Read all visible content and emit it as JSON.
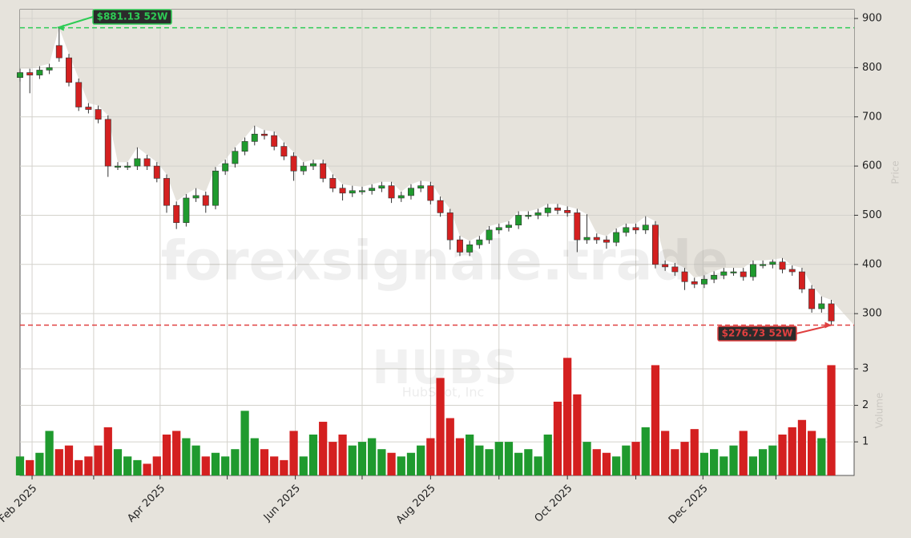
{
  "chart_data": {
    "type": "candlestick",
    "watermark": "forexsignale.trade",
    "ticker": "HUBS",
    "company": "HubSpot, Inc",
    "y_label": "Price",
    "y2_label": "Volume",
    "x": [
      0,
      3,
      6,
      9,
      12,
      15,
      18,
      21,
      24,
      27,
      30,
      33,
      36,
      39,
      42,
      45,
      48,
      51,
      54,
      57,
      60,
      63,
      66,
      69,
      72,
      75,
      78,
      81,
      84,
      87,
      90,
      93,
      96,
      99,
      102,
      105,
      108,
      111,
      114,
      117,
      120,
      123,
      126,
      129,
      132,
      135,
      138,
      141,
      144,
      147,
      150,
      153,
      156,
      159,
      162,
      165,
      168,
      171,
      174,
      177,
      180,
      183,
      186,
      189,
      192,
      195,
      198,
      201,
      204,
      207,
      210,
      213,
      216,
      219,
      222,
      225,
      228,
      231,
      234,
      237,
      240,
      243,
      246,
      249
    ],
    "open": [
      780,
      790,
      785,
      795,
      845,
      820,
      770,
      720,
      715,
      695,
      600,
      600,
      600,
      615,
      600,
      575,
      520,
      485,
      535,
      540,
      520,
      590,
      605,
      630,
      650,
      665,
      662,
      640,
      620,
      590,
      600,
      605,
      575,
      555,
      545,
      550,
      550,
      555,
      560,
      535,
      540,
      555,
      560,
      530,
      505,
      450,
      425,
      440,
      450,
      470,
      475,
      480,
      500,
      500,
      505,
      515,
      510,
      505,
      450,
      455,
      450,
      445,
      465,
      475,
      470,
      480,
      400,
      395,
      385,
      365,
      360,
      370,
      378,
      385,
      385,
      375,
      400,
      400,
      405,
      390,
      385,
      350,
      310,
      320
    ],
    "high": [
      798,
      798,
      803,
      808,
      881.13,
      828,
      778,
      728,
      723,
      703,
      608,
      608,
      638,
      623,
      608,
      583,
      528,
      543,
      555,
      548,
      598,
      613,
      638,
      658,
      682,
      673,
      670,
      648,
      628,
      608,
      613,
      613,
      583,
      563,
      560,
      558,
      563,
      568,
      568,
      548,
      563,
      570,
      568,
      538,
      513,
      458,
      448,
      458,
      478,
      483,
      488,
      508,
      508,
      513,
      523,
      523,
      518,
      513,
      502,
      463,
      458,
      473,
      483,
      483,
      498,
      488,
      408,
      403,
      393,
      373,
      378,
      386,
      393,
      393,
      393,
      408,
      408,
      410,
      413,
      398,
      393,
      358,
      335,
      328
    ],
    "low": [
      772,
      748,
      777,
      787,
      812,
      762,
      712,
      707,
      687,
      578,
      592,
      592,
      592,
      592,
      567,
      505,
      472,
      477,
      527,
      505,
      512,
      582,
      597,
      622,
      642,
      654,
      632,
      612,
      570,
      582,
      592,
      567,
      547,
      530,
      537,
      542,
      542,
      547,
      525,
      527,
      532,
      547,
      522,
      497,
      430,
      417,
      417,
      432,
      442,
      462,
      467,
      472,
      492,
      492,
      497,
      502,
      497,
      425,
      442,
      442,
      432,
      437,
      457,
      462,
      462,
      392,
      387,
      377,
      348,
      352,
      352,
      362,
      370,
      377,
      367,
      367,
      392,
      392,
      382,
      377,
      342,
      302,
      302,
      276.73
    ],
    "close": [
      790,
      785,
      795,
      800,
      820,
      770,
      720,
      715,
      695,
      600,
      600,
      600,
      615,
      600,
      575,
      520,
      485,
      535,
      540,
      520,
      590,
      605,
      630,
      650,
      665,
      662,
      640,
      620,
      590,
      600,
      605,
      575,
      555,
      545,
      550,
      550,
      555,
      560,
      535,
      540,
      555,
      560,
      530,
      505,
      450,
      425,
      440,
      450,
      470,
      475,
      480,
      500,
      500,
      505,
      515,
      510,
      505,
      450,
      455,
      450,
      445,
      465,
      475,
      470,
      480,
      400,
      395,
      385,
      365,
      360,
      370,
      378,
      385,
      385,
      375,
      400,
      400,
      405,
      390,
      385,
      350,
      310,
      320,
      285
    ],
    "volume": [
      0.6,
      0.5,
      0.7,
      1.3,
      0.8,
      0.9,
      0.5,
      0.6,
      0.9,
      1.4,
      0.8,
      0.6,
      0.5,
      0.4,
      0.6,
      1.2,
      1.3,
      1.1,
      0.9,
      0.6,
      0.7,
      0.6,
      0.8,
      1.85,
      1.1,
      0.8,
      0.6,
      0.5,
      1.3,
      0.6,
      1.2,
      1.55,
      1.0,
      1.2,
      0.9,
      1.0,
      1.1,
      0.8,
      0.7,
      0.6,
      0.7,
      0.9,
      1.1,
      2.75,
      1.65,
      1.1,
      1.2,
      0.9,
      0.8,
      1.0,
      1.0,
      0.7,
      0.8,
      0.6,
      1.2,
      2.1,
      3.3,
      2.3,
      1.0,
      0.8,
      0.7,
      0.6,
      0.9,
      1.0,
      1.4,
      3.1,
      1.3,
      0.8,
      1.0,
      1.35,
      0.7,
      0.8,
      0.6,
      0.9,
      1.3,
      0.6,
      0.8,
      0.9,
      1.2,
      1.4,
      1.6,
      1.3,
      1.1,
      3.1
    ],
    "up_color": "#1f9a2e",
    "down_color": "#d42020",
    "xlim": [
      0,
      256
    ],
    "xticks": [
      {
        "value": 3.7,
        "label": "Feb 2025"
      },
      {
        "value": 43,
        "label": "Apr 2025"
      },
      {
        "value": 84.5,
        "label": "Jun 2025"
      },
      {
        "value": 126,
        "label": "Aug 2025"
      },
      {
        "value": 168,
        "label": "Oct 2025"
      },
      {
        "value": 209.6,
        "label": "Dec 2025"
      }
    ],
    "minor_xticks": [
      22.6,
      63.6,
      105,
      147,
      189,
      232
    ],
    "ylim": [
      253,
      918
    ],
    "yticks": [
      300,
      400,
      500,
      600,
      700,
      800,
      900
    ],
    "y2lim": [
      0.08,
      3.9
    ],
    "y2ticks": [
      1,
      2,
      3
    ],
    "grid": true,
    "high_marker": {
      "label": "$881.13 52W",
      "value": 881.13,
      "x": 11.5,
      "color": "#2ecc55"
    },
    "low_marker": {
      "label": "$276.73 52W",
      "value": 276.73,
      "x": 249,
      "color": "#e04040"
    }
  }
}
